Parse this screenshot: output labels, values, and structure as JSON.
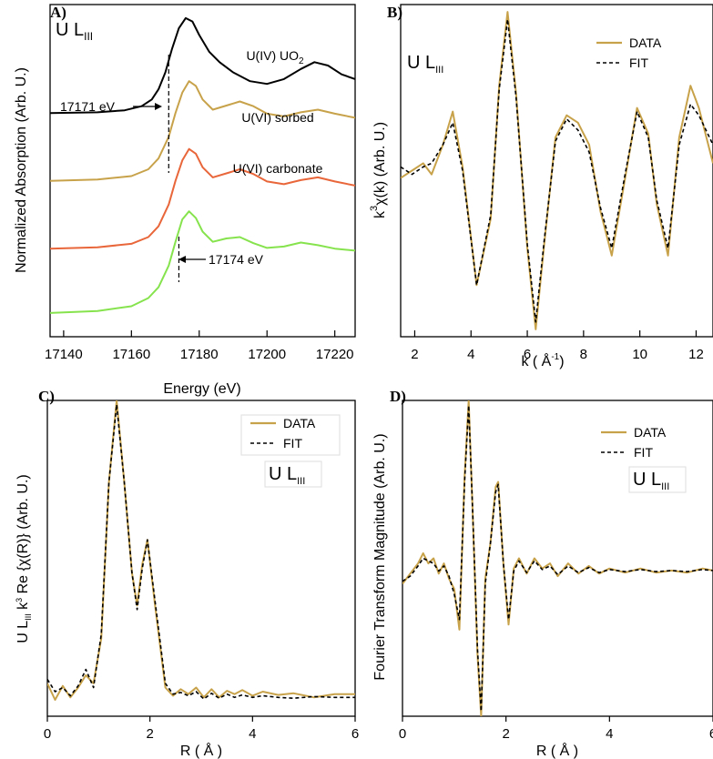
{
  "colors": {
    "data": "#c8a24a",
    "fit": "#000000",
    "uo2": "#000000",
    "sorbed_data": "#c8a24a",
    "sorbed": "#e8663a",
    "carbonate": "#86e34e"
  },
  "chart_data": [
    {
      "panel": "A)",
      "type": "line",
      "box_label": {
        "main": "U L",
        "sub": "III"
      },
      "xlabel": "Energy (eV)",
      "ylabel": "Normalized Absorption (Arb. U.)",
      "xlim": [
        17136,
        17226
      ],
      "xticks": [
        17140,
        17160,
        17180,
        17200,
        17220
      ],
      "grid": false,
      "annotations": [
        {
          "text": "17171 eV",
          "target_x": 17171
        },
        {
          "text": "17174 eV",
          "target_x": 17174
        }
      ],
      "series": [
        {
          "name": "U(IV) UO₂",
          "label_main": "U(IV) UO",
          "label_sub": "2",
          "color": "#000000",
          "x": [
            17136,
            17150,
            17158,
            17163,
            17166,
            17168,
            17170,
            17172,
            17174,
            17176,
            17178,
            17180,
            17183,
            17186,
            17190,
            17195,
            17200,
            17205,
            17210,
            17214,
            17218,
            17222,
            17226
          ],
          "y": [
            2.95,
            2.96,
            2.99,
            3.05,
            3.15,
            3.3,
            3.55,
            3.9,
            4.2,
            4.35,
            4.3,
            4.1,
            3.85,
            3.7,
            3.55,
            3.42,
            3.38,
            3.45,
            3.6,
            3.7,
            3.65,
            3.52,
            3.45
          ]
        },
        {
          "name": "U(VI) sorbed",
          "label_main": "U(VI) sorbed",
          "label_sub": "",
          "color": "#c8a24a",
          "x": [
            17136,
            17150,
            17160,
            17165,
            17168,
            17171,
            17173,
            17175,
            17177,
            17179,
            17181,
            17184,
            17188,
            17192,
            17196,
            17200,
            17205,
            17210,
            17215,
            17220,
            17226
          ],
          "y": [
            1.95,
            1.97,
            2.02,
            2.12,
            2.28,
            2.6,
            2.95,
            3.25,
            3.42,
            3.35,
            3.15,
            3.0,
            3.06,
            3.12,
            3.05,
            2.94,
            2.9,
            2.96,
            3.0,
            2.94,
            2.88
          ]
        },
        {
          "name": "U(VI) sorbed",
          "label_main": "",
          "label_sub": "",
          "color": "#e8663a",
          "x": [
            17136,
            17150,
            17160,
            17165,
            17168,
            17171,
            17173,
            17175,
            17177,
            17179,
            17181,
            17184,
            17188,
            17192,
            17196,
            17200,
            17205,
            17210,
            17215,
            17220,
            17226
          ],
          "y": [
            0.95,
            0.97,
            1.02,
            1.12,
            1.28,
            1.6,
            1.95,
            2.25,
            2.42,
            2.35,
            2.15,
            2.0,
            2.06,
            2.12,
            2.05,
            1.94,
            1.9,
            1.96,
            2.0,
            1.94,
            1.88
          ]
        },
        {
          "name": "U(VI) carbonate",
          "label_main": "U(VI) carbonate",
          "label_sub": "",
          "color": "#86e34e",
          "x": [
            17136,
            17150,
            17160,
            17165,
            17168,
            17171,
            17173,
            17175,
            17177,
            17179,
            17181,
            17184,
            17188,
            17192,
            17196,
            17200,
            17205,
            17210,
            17215,
            17220,
            17226
          ],
          "y": [
            0.0,
            0.03,
            0.1,
            0.22,
            0.38,
            0.7,
            1.05,
            1.38,
            1.5,
            1.4,
            1.2,
            1.05,
            1.1,
            1.12,
            1.03,
            0.96,
            0.98,
            1.04,
            1.0,
            0.95,
            0.92
          ]
        }
      ]
    },
    {
      "panel": "B)",
      "type": "line",
      "box_label": {
        "main": "U L",
        "sub": "III"
      },
      "xlabel": "k ( Å⁻¹)",
      "xlabel_parts": {
        "pre": "k ( Å",
        "sup": "-1",
        "post": ")"
      },
      "ylabel": "k³χ(k) (Arb. U.)",
      "ylabel_parts": {
        "pre": "k",
        "sup": "3",
        "post": "χ(k) (Arb. U.)"
      },
      "xlim": [
        1.5,
        12.6
      ],
      "xticks": [
        2,
        4,
        6,
        8,
        10,
        12
      ],
      "legend": {
        "position": "top-right",
        "entries": [
          "DATA",
          "FIT"
        ]
      },
      "grid": false,
      "series": [
        {
          "name": "DATA",
          "color": "#c8a24a",
          "style": "solid",
          "x": [
            1.5,
            1.9,
            2.3,
            2.6,
            3.0,
            3.35,
            3.7,
            4.2,
            4.7,
            5.0,
            5.3,
            5.6,
            6.0,
            6.3,
            6.6,
            7.0,
            7.4,
            7.8,
            8.2,
            8.6,
            9.0,
            9.5,
            9.9,
            10.3,
            10.6,
            11.0,
            11.4,
            11.8,
            12.1,
            12.6
          ],
          "y": [
            0.3,
            0.5,
            0.7,
            0.4,
            1.2,
            2.1,
            0.6,
            -2.6,
            -0.8,
            2.8,
            4.8,
            2.6,
            -1.6,
            -3.8,
            -1.5,
            1.4,
            2.0,
            1.8,
            1.2,
            -0.6,
            -1.8,
            0.4,
            2.2,
            1.5,
            -0.4,
            -1.8,
            1.4,
            2.8,
            2.2,
            0.7
          ]
        },
        {
          "name": "FIT",
          "color": "#000000",
          "style": "dashed",
          "x": [
            1.5,
            1.9,
            2.3,
            2.6,
            3.0,
            3.35,
            3.7,
            4.2,
            4.7,
            5.0,
            5.3,
            5.6,
            6.0,
            6.3,
            6.6,
            7.0,
            7.4,
            7.8,
            8.2,
            8.6,
            9.0,
            9.5,
            9.9,
            10.3,
            10.6,
            11.0,
            11.4,
            11.8,
            12.1,
            12.6
          ],
          "y": [
            0.6,
            0.4,
            0.6,
            0.7,
            1.2,
            1.8,
            0.5,
            -2.6,
            -0.7,
            2.7,
            4.6,
            2.5,
            -1.5,
            -3.6,
            -1.4,
            1.3,
            1.9,
            1.6,
            1.0,
            -0.5,
            -1.6,
            0.5,
            2.1,
            1.4,
            -0.3,
            -1.6,
            1.2,
            2.3,
            2.0,
            1.2
          ]
        }
      ]
    },
    {
      "panel": "C)",
      "type": "line",
      "box_label": {
        "main": "U L",
        "sub": "III"
      },
      "xlabel": "R ( Å )",
      "ylabel": "U L₃₃₃ k³ Re {χ(R)} (Arb. U.)",
      "ylabel_parts": {
        "a": "U L",
        "sub": "III",
        "b": " k",
        "sup": "3",
        "c": " Re {χ(R)} (Arb. U.)"
      },
      "xlim": [
        0,
        6
      ],
      "xticks": [
        0,
        2,
        4,
        6
      ],
      "legend": {
        "position": "top-right",
        "entries": [
          "DATA",
          "FIT"
        ]
      },
      "grid": false,
      "series": [
        {
          "name": "DATA",
          "color": "#c8a24a",
          "style": "solid",
          "x": [
            0.0,
            0.15,
            0.3,
            0.45,
            0.6,
            0.75,
            0.9,
            1.05,
            1.2,
            1.35,
            1.5,
            1.65,
            1.75,
            1.85,
            1.95,
            2.1,
            2.3,
            2.45,
            2.6,
            2.75,
            2.9,
            3.05,
            3.2,
            3.35,
            3.5,
            3.65,
            3.8,
            4.0,
            4.2,
            4.5,
            4.8,
            5.2,
            5.6,
            6.0
          ],
          "y": [
            0.15,
            -0.05,
            0.12,
            -0.02,
            0.1,
            0.25,
            0.15,
            0.7,
            2.6,
            3.6,
            2.6,
            1.5,
            1.1,
            1.6,
            1.9,
            1.1,
            0.1,
            0.0,
            0.08,
            0.02,
            0.1,
            -0.02,
            0.08,
            -0.02,
            0.06,
            0.02,
            0.07,
            0.0,
            0.05,
            0.01,
            0.03,
            -0.02,
            0.02,
            0.02
          ]
        },
        {
          "name": "FIT",
          "color": "#000000",
          "style": "dashed",
          "x": [
            0.0,
            0.15,
            0.3,
            0.45,
            0.6,
            0.75,
            0.9,
            1.05,
            1.2,
            1.35,
            1.5,
            1.65,
            1.75,
            1.85,
            1.95,
            2.1,
            2.3,
            2.45,
            2.6,
            2.75,
            2.9,
            3.05,
            3.2,
            3.35,
            3.5,
            3.65,
            3.8,
            4.0,
            4.2,
            4.5,
            4.8,
            5.2,
            5.6,
            6.0
          ],
          "y": [
            0.2,
            0.05,
            0.1,
            0.0,
            0.12,
            0.32,
            0.1,
            0.75,
            2.6,
            3.55,
            2.6,
            1.5,
            1.05,
            1.55,
            1.9,
            1.15,
            0.15,
            0.02,
            0.04,
            0.0,
            0.05,
            -0.04,
            0.03,
            -0.03,
            0.02,
            -0.02,
            0.01,
            -0.02,
            0.0,
            -0.02,
            -0.03,
            -0.01,
            -0.02,
            -0.02
          ]
        }
      ]
    },
    {
      "panel": "D)",
      "type": "line",
      "box_label": {
        "main": "U L",
        "sub": "III"
      },
      "xlabel": "R ( Å )",
      "ylabel": "Fourier Transform Magnitude (Arb. U.)",
      "xlim": [
        0,
        6
      ],
      "xticks": [
        0,
        2,
        4,
        6
      ],
      "legend": {
        "position": "top-right",
        "entries": [
          "DATA",
          "FIT"
        ]
      },
      "grid": false,
      "series": [
        {
          "name": "DATA",
          "color": "#c8a24a",
          "style": "solid",
          "x": [
            0.0,
            0.15,
            0.3,
            0.4,
            0.5,
            0.6,
            0.7,
            0.8,
            0.9,
            1.0,
            1.1,
            1.2,
            1.28,
            1.35,
            1.45,
            1.52,
            1.6,
            1.7,
            1.8,
            1.85,
            1.95,
            2.05,
            2.15,
            2.25,
            2.4,
            2.55,
            2.7,
            2.85,
            3.0,
            3.2,
            3.4,
            3.6,
            3.8,
            4.0,
            4.3,
            4.6,
            4.9,
            5.2,
            5.5,
            5.8,
            6.0
          ],
          "y": [
            0.4,
            0.6,
            0.8,
            1.0,
            0.8,
            0.9,
            0.6,
            0.8,
            0.5,
            0.3,
            -0.5,
            2.5,
            4.0,
            2.0,
            -1.0,
            -2.2,
            0.5,
            1.2,
            2.3,
            2.4,
            0.8,
            -0.4,
            0.7,
            0.9,
            0.6,
            0.9,
            0.7,
            0.8,
            0.55,
            0.8,
            0.6,
            0.75,
            0.6,
            0.7,
            0.62,
            0.7,
            0.62,
            0.66,
            0.62,
            0.7,
            0.66
          ]
        },
        {
          "name": "FIT",
          "color": "#000000",
          "style": "dashed",
          "x": [
            0.0,
            0.15,
            0.3,
            0.4,
            0.5,
            0.6,
            0.7,
            0.8,
            0.9,
            1.0,
            1.1,
            1.2,
            1.28,
            1.35,
            1.45,
            1.52,
            1.6,
            1.7,
            1.8,
            1.85,
            1.95,
            2.05,
            2.15,
            2.25,
            2.4,
            2.55,
            2.7,
            2.85,
            3.0,
            3.2,
            3.4,
            3.6,
            3.8,
            4.0,
            4.3,
            4.6,
            4.9,
            5.2,
            5.5,
            5.8,
            6.0
          ],
          "y": [
            0.45,
            0.55,
            0.75,
            0.9,
            0.85,
            0.8,
            0.65,
            0.75,
            0.55,
            0.2,
            -0.3,
            2.4,
            3.9,
            2.0,
            -0.9,
            -2.1,
            0.4,
            1.2,
            2.2,
            2.35,
            0.8,
            -0.3,
            0.65,
            0.85,
            0.62,
            0.85,
            0.68,
            0.75,
            0.58,
            0.75,
            0.62,
            0.72,
            0.62,
            0.68,
            0.64,
            0.68,
            0.64,
            0.66,
            0.64,
            0.68,
            0.66
          ]
        }
      ]
    }
  ]
}
